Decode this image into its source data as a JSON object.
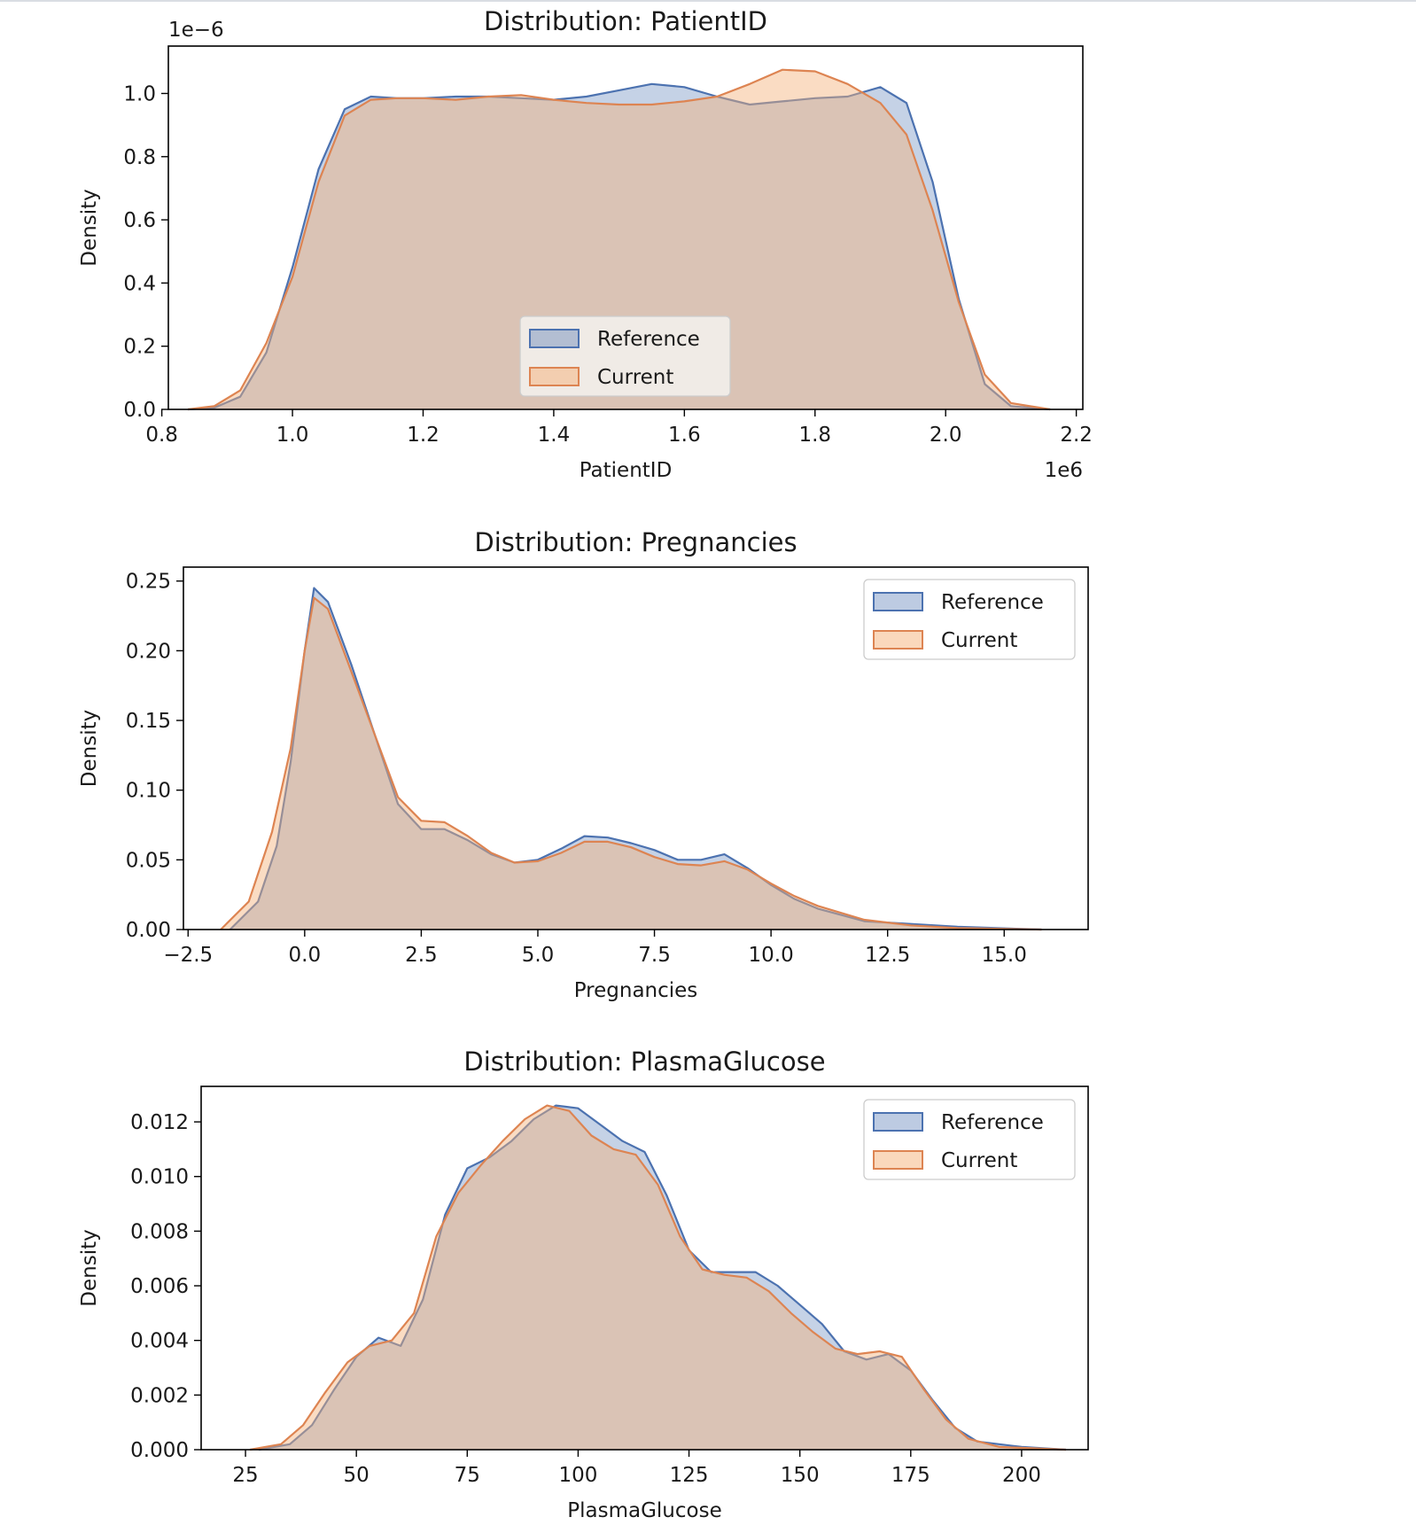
{
  "colors": {
    "reference": "#4c72b0",
    "current": "#dd8452",
    "reference_fill": "#4c72b0",
    "current_fill": "#f5b27a"
  },
  "chart_data": [
    {
      "type": "area",
      "title": "Distribution: PatientID",
      "xlabel": "PatientID",
      "ylabel": "Density",
      "x_offset_label": "1e6",
      "y_offset_label": "1e−6",
      "xlim": [
        810000,
        2210000
      ],
      "ylim": [
        0,
        1.15e-06
      ],
      "xticks": [
        800000,
        1000000,
        1200000,
        1400000,
        1600000,
        1800000,
        2000000,
        2200000
      ],
      "xtick_labels": [
        "0.8",
        "1.0",
        "1.2",
        "1.4",
        "1.6",
        "1.8",
        "2.0",
        "2.2"
      ],
      "yticks": [
        0,
        2e-07,
        4e-07,
        6e-07,
        8e-07,
        1e-06
      ],
      "ytick_labels": [
        "0.0",
        "0.2",
        "0.4",
        "0.6",
        "0.8",
        "1.0"
      ],
      "legend_position": "lower-center",
      "grid": false,
      "series": [
        {
          "name": "Reference",
          "x": [
            840000,
            880000,
            920000,
            960000,
            1000000,
            1040000,
            1080000,
            1120000,
            1160000,
            1200000,
            1250000,
            1300000,
            1350000,
            1400000,
            1450000,
            1500000,
            1550000,
            1600000,
            1650000,
            1700000,
            1750000,
            1800000,
            1850000,
            1900000,
            1940000,
            1980000,
            2020000,
            2060000,
            2100000,
            2160000
          ],
          "y": [
            0,
            5e-09,
            4e-08,
            1.8e-07,
            4.5e-07,
            7.6e-07,
            9.5e-07,
            9.9e-07,
            9.85e-07,
            9.85e-07,
            9.9e-07,
            9.9e-07,
            9.85e-07,
            9.8e-07,
            9.9e-07,
            1.01e-06,
            1.03e-06,
            1.02e-06,
            9.9e-07,
            9.65e-07,
            9.75e-07,
            9.85e-07,
            9.9e-07,
            1.02e-06,
            9.7e-07,
            7.2e-07,
            3.5e-07,
            8e-08,
            1e-08,
            0
          ]
        },
        {
          "name": "Current",
          "x": [
            840000,
            880000,
            920000,
            960000,
            1000000,
            1040000,
            1080000,
            1120000,
            1160000,
            1200000,
            1250000,
            1300000,
            1350000,
            1400000,
            1450000,
            1500000,
            1550000,
            1600000,
            1650000,
            1700000,
            1750000,
            1800000,
            1850000,
            1900000,
            1940000,
            1980000,
            2020000,
            2060000,
            2100000,
            2160000
          ],
          "y": [
            0,
            1e-08,
            6e-08,
            2.1e-07,
            4.2e-07,
            7.2e-07,
            9.3e-07,
            9.8e-07,
            9.85e-07,
            9.85e-07,
            9.8e-07,
            9.9e-07,
            9.95e-07,
            9.8e-07,
            9.7e-07,
            9.65e-07,
            9.65e-07,
            9.75e-07,
            9.9e-07,
            1.03e-06,
            1.075e-06,
            1.07e-06,
            1.03e-06,
            9.7e-07,
            8.7e-07,
            6.3e-07,
            3.4e-07,
            1.1e-07,
            2e-08,
            0
          ]
        }
      ]
    },
    {
      "type": "area",
      "title": "Distribution: Pregnancies",
      "xlabel": "Pregnancies",
      "ylabel": "Density",
      "xlim": [
        -2.6,
        16.8
      ],
      "ylim": [
        0,
        0.26
      ],
      "xticks": [
        -2.5,
        0.0,
        2.5,
        5.0,
        7.5,
        10.0,
        12.5,
        15.0
      ],
      "xtick_labels": [
        "−2.5",
        "0.0",
        "2.5",
        "5.0",
        "7.5",
        "10.0",
        "12.5",
        "15.0"
      ],
      "yticks": [
        0,
        0.05,
        0.1,
        0.15,
        0.2,
        0.25
      ],
      "ytick_labels": [
        "0.00",
        "0.05",
        "0.10",
        "0.15",
        "0.20",
        "0.25"
      ],
      "legend_position": "upper-right",
      "grid": false,
      "series": [
        {
          "name": "Reference",
          "x": [
            -1.6,
            -1.0,
            -0.6,
            -0.3,
            0.0,
            0.2,
            0.5,
            1.0,
            1.5,
            2.0,
            2.5,
            3.0,
            3.5,
            4.0,
            4.5,
            5.0,
            5.5,
            6.0,
            6.5,
            7.0,
            7.5,
            8.0,
            8.5,
            9.0,
            9.5,
            10.0,
            10.5,
            11.0,
            12.0,
            13.0,
            14.0,
            15.8
          ],
          "y": [
            0,
            0.02,
            0.06,
            0.12,
            0.2,
            0.245,
            0.235,
            0.19,
            0.14,
            0.09,
            0.072,
            0.072,
            0.064,
            0.054,
            0.048,
            0.05,
            0.058,
            0.067,
            0.066,
            0.062,
            0.057,
            0.05,
            0.05,
            0.054,
            0.044,
            0.032,
            0.022,
            0.015,
            0.006,
            0.004,
            0.002,
            0
          ]
        },
        {
          "name": "Current",
          "x": [
            -1.8,
            -1.2,
            -0.7,
            -0.3,
            0.0,
            0.2,
            0.5,
            1.0,
            1.5,
            2.0,
            2.5,
            3.0,
            3.5,
            4.0,
            4.5,
            5.0,
            5.5,
            6.0,
            6.5,
            7.0,
            7.5,
            8.0,
            8.5,
            9.0,
            9.5,
            10.0,
            10.5,
            11.0,
            12.0,
            13.0,
            14.0,
            15.8
          ],
          "y": [
            0,
            0.02,
            0.07,
            0.13,
            0.2,
            0.238,
            0.23,
            0.185,
            0.14,
            0.095,
            0.078,
            0.077,
            0.067,
            0.055,
            0.048,
            0.049,
            0.055,
            0.063,
            0.063,
            0.059,
            0.052,
            0.047,
            0.046,
            0.049,
            0.043,
            0.033,
            0.024,
            0.017,
            0.007,
            0.003,
            0.001,
            0
          ]
        }
      ]
    },
    {
      "type": "area",
      "title": "Distribution: PlasmaGlucose",
      "xlabel": "PlasmaGlucose",
      "ylabel": "Density",
      "xlim": [
        15,
        215
      ],
      "ylim": [
        0,
        0.0133
      ],
      "xticks": [
        25,
        50,
        75,
        100,
        125,
        150,
        175,
        200
      ],
      "xtick_labels": [
        "25",
        "50",
        "75",
        "100",
        "125",
        "150",
        "175",
        "200"
      ],
      "yticks": [
        0,
        0.002,
        0.004,
        0.006,
        0.008,
        0.01,
        0.012
      ],
      "ytick_labels": [
        "0.000",
        "0.002",
        "0.004",
        "0.006",
        "0.008",
        "0.010",
        "0.012"
      ],
      "legend_position": "upper-right",
      "grid": false,
      "series": [
        {
          "name": "Reference",
          "x": [
            28,
            35,
            40,
            45,
            50,
            55,
            60,
            65,
            70,
            75,
            80,
            85,
            90,
            95,
            100,
            105,
            110,
            115,
            120,
            125,
            130,
            135,
            140,
            145,
            150,
            155,
            160,
            165,
            170,
            175,
            180,
            185,
            190,
            200,
            210
          ],
          "y": [
            0,
            0.0002,
            0.0009,
            0.0022,
            0.0034,
            0.0041,
            0.0038,
            0.0055,
            0.0086,
            0.0103,
            0.0107,
            0.0113,
            0.0121,
            0.0126,
            0.0125,
            0.0119,
            0.0113,
            0.0109,
            0.0093,
            0.0073,
            0.0065,
            0.0065,
            0.0065,
            0.006,
            0.0053,
            0.0046,
            0.0036,
            0.0033,
            0.0035,
            0.0029,
            0.0018,
            0.0008,
            0.0003,
            0.0001,
            0
          ]
        },
        {
          "name": "Current",
          "x": [
            26,
            33,
            38,
            43,
            48,
            53,
            58,
            63,
            68,
            73,
            78,
            83,
            88,
            93,
            98,
            103,
            108,
            113,
            118,
            123,
            128,
            133,
            138,
            143,
            148,
            153,
            158,
            163,
            168,
            173,
            178,
            183,
            188,
            195,
            210
          ],
          "y": [
            0,
            0.0002,
            0.0009,
            0.0021,
            0.0032,
            0.0038,
            0.004,
            0.005,
            0.0078,
            0.0094,
            0.0104,
            0.0113,
            0.0121,
            0.0126,
            0.0124,
            0.0115,
            0.011,
            0.0108,
            0.0097,
            0.0078,
            0.0066,
            0.0064,
            0.0063,
            0.0058,
            0.005,
            0.0043,
            0.0037,
            0.0035,
            0.0036,
            0.0034,
            0.0022,
            0.0011,
            0.0004,
            0.0001,
            0
          ]
        }
      ]
    }
  ]
}
